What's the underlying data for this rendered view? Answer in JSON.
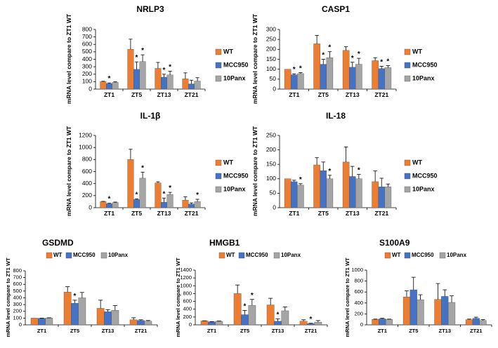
{
  "figure": {
    "series_names": [
      "WT",
      "MCC950",
      "10Panx"
    ],
    "series_colors": [
      "#ED7D31",
      "#4472C4",
      "#A5A5A5"
    ],
    "significance_marker": "*"
  },
  "chart_data": [
    {
      "id": "nlrp3",
      "type": "bar",
      "title": "NRLP3",
      "ylabel": "mRNA level compare to ZT1 WT",
      "xlabel": "",
      "ylim": [
        0,
        800
      ],
      "yticks": [
        0,
        100,
        200,
        300,
        400,
        500,
        600,
        700,
        800
      ],
      "legend": "right",
      "categories": [
        "ZT1",
        "ZT5",
        "ZT13",
        "ZT21"
      ],
      "series": [
        {
          "name": "WT",
          "values": [
            100,
            535,
            278,
            138
          ],
          "errors": [
            5,
            135,
            80,
            80
          ],
          "sig": [
            false,
            false,
            false,
            false
          ]
        },
        {
          "name": "MCC950",
          "values": [
            75,
            265,
            160,
            70
          ],
          "errors": [
            8,
            100,
            40,
            50
          ],
          "sig": [
            true,
            true,
            true,
            false
          ]
        },
        {
          "name": "10Panx",
          "values": [
            90,
            370,
            190,
            108
          ],
          "errors": [
            8,
            90,
            50,
            45
          ],
          "sig": [
            false,
            true,
            true,
            false
          ]
        }
      ]
    },
    {
      "id": "casp1",
      "type": "bar",
      "title": "CASP1",
      "ylabel": "mRNA level compare to ZT1 WT",
      "xlabel": "",
      "ylim": [
        0,
        300
      ],
      "yticks": [
        0,
        50,
        100,
        150,
        200,
        250,
        300
      ],
      "legend": "right",
      "categories": [
        "ZT1",
        "ZT5",
        "ZT13",
        "ZT21"
      ],
      "series": [
        {
          "name": "WT",
          "values": [
            100,
            228,
            195,
            143
          ],
          "errors": [
            0,
            42,
            18,
            15
          ],
          "sig": [
            false,
            false,
            false,
            false
          ]
        },
        {
          "name": "MCC950",
          "values": [
            72,
            125,
            110,
            103
          ],
          "errors": [
            5,
            25,
            25,
            12
          ],
          "sig": [
            true,
            true,
            true,
            true
          ]
        },
        {
          "name": "10Panx",
          "values": [
            78,
            158,
            125,
            108
          ],
          "errors": [
            5,
            30,
            30,
            10
          ],
          "sig": [
            true,
            true,
            true,
            true
          ]
        }
      ]
    },
    {
      "id": "il1b",
      "type": "bar",
      "title": "IL-1β",
      "ylabel": "mRNA level compare to ZT1 WT",
      "xlabel": "",
      "ylim": [
        0,
        1200
      ],
      "yticks": [
        0,
        200,
        400,
        600,
        800,
        1000,
        1200
      ],
      "legend": "right",
      "categories": [
        "ZT1",
        "ZT5",
        "ZT13",
        "ZT21"
      ],
      "series": [
        {
          "name": "WT",
          "values": [
            100,
            800,
            410,
            125
          ],
          "errors": [
            5,
            170,
            20,
            55
          ],
          "sig": [
            false,
            false,
            false,
            false
          ]
        },
        {
          "name": "MCC950",
          "values": [
            65,
            135,
            90,
            60
          ],
          "errors": [
            8,
            10,
            70,
            20
          ],
          "sig": [
            true,
            true,
            true,
            false
          ]
        },
        {
          "name": "10Panx",
          "values": [
            85,
            490,
            220,
            100
          ],
          "errors": [
            8,
            100,
            35,
            40
          ],
          "sig": [
            false,
            true,
            true,
            true
          ]
        }
      ]
    },
    {
      "id": "il18",
      "type": "bar",
      "title": "IL-18",
      "ylabel": "mRNA level compare to ZT1 WT",
      "xlabel": "",
      "ylim": [
        0,
        250
      ],
      "yticks": [
        0,
        50,
        100,
        150,
        200,
        250
      ],
      "legend": "right",
      "categories": [
        "ZT1",
        "ZT5",
        "ZT13",
        "ZT21"
      ],
      "series": [
        {
          "name": "WT",
          "values": [
            100,
            148,
            158,
            90
          ],
          "errors": [
            0,
            25,
            52,
            37
          ],
          "sig": [
            false,
            false,
            false,
            false
          ]
        },
        {
          "name": "MCC950",
          "values": [
            90,
            128,
            108,
            72
          ],
          "errors": [
            5,
            30,
            35,
            30
          ],
          "sig": [
            false,
            false,
            false,
            false
          ]
        },
        {
          "name": "10Panx",
          "values": [
            78,
            100,
            100,
            72
          ],
          "errors": [
            5,
            12,
            15,
            10
          ],
          "sig": [
            true,
            true,
            true,
            false
          ]
        }
      ]
    },
    {
      "id": "gsdmd",
      "type": "bar",
      "title": "GSDMD",
      "ylabel": "mRNA level compare to ZT1 WT",
      "xlabel": "",
      "ylim": [
        0,
        800
      ],
      "yticks": [
        0,
        100,
        200,
        300,
        400,
        500,
        600,
        700,
        800
      ],
      "legend": "top",
      "categories": [
        "ZT1",
        "ZT5",
        "ZT13",
        "ZT21"
      ],
      "series": [
        {
          "name": "WT",
          "values": [
            100,
            485,
            245,
            75
          ],
          "errors": [
            0,
            80,
            120,
            30
          ],
          "sig": [
            false,
            false,
            false,
            false
          ]
        },
        {
          "name": "MCC950",
          "values": [
            95,
            320,
            195,
            65
          ],
          "errors": [
            5,
            45,
            30,
            10
          ],
          "sig": [
            false,
            true,
            false,
            false
          ]
        },
        {
          "name": "10Panx",
          "values": [
            100,
            400,
            215,
            55
          ],
          "errors": [
            5,
            80,
            70,
            10
          ],
          "sig": [
            false,
            false,
            false,
            false
          ]
        }
      ]
    },
    {
      "id": "hmgb1",
      "type": "bar",
      "title": "HMGB1",
      "ylabel": "mRNA level compare to ZT1 WT",
      "xlabel": "",
      "ylim": [
        0,
        1400
      ],
      "yticks": [
        0,
        200,
        400,
        600,
        800,
        1000,
        1200,
        1400
      ],
      "legend": "top",
      "categories": [
        "ZT1",
        "ZT5",
        "ZT13",
        "ZT21"
      ],
      "series": [
        {
          "name": "WT",
          "values": [
            100,
            800,
            510,
            95
          ],
          "errors": [
            5,
            220,
            170,
            35
          ],
          "sig": [
            false,
            false,
            false,
            false
          ]
        },
        {
          "name": "MCC950",
          "values": [
            75,
            260,
            95,
            30
          ],
          "errors": [
            8,
            110,
            60,
            10
          ],
          "sig": [
            false,
            true,
            true,
            true
          ]
        },
        {
          "name": "10Panx",
          "values": [
            90,
            500,
            360,
            70
          ],
          "errors": [
            8,
            150,
            100,
            40
          ],
          "sig": [
            false,
            true,
            false,
            false
          ]
        }
      ]
    },
    {
      "id": "s100a9",
      "type": "bar",
      "title": "S100A9",
      "ylabel": "mRNA level compare to ZT1 WT",
      "xlabel": "",
      "ylim": [
        0,
        1000
      ],
      "yticks": [
        0,
        200,
        400,
        600,
        800,
        1000
      ],
      "legend": "top",
      "categories": [
        "ZT1",
        "ZT5",
        "ZT13",
        "ZT21"
      ],
      "series": [
        {
          "name": "WT",
          "values": [
            100,
            510,
            465,
            95
          ],
          "errors": [
            5,
            110,
            290,
            10
          ],
          "sig": [
            false,
            false,
            false,
            false
          ]
        },
        {
          "name": "MCC950",
          "values": [
            110,
            640,
            520,
            120
          ],
          "errors": [
            10,
            230,
            120,
            20
          ],
          "sig": [
            false,
            false,
            false,
            false
          ]
        },
        {
          "name": "10Panx",
          "values": [
            100,
            460,
            410,
            80
          ],
          "errors": [
            5,
            90,
            120,
            15
          ],
          "sig": [
            false,
            false,
            false,
            false
          ]
        }
      ]
    }
  ]
}
